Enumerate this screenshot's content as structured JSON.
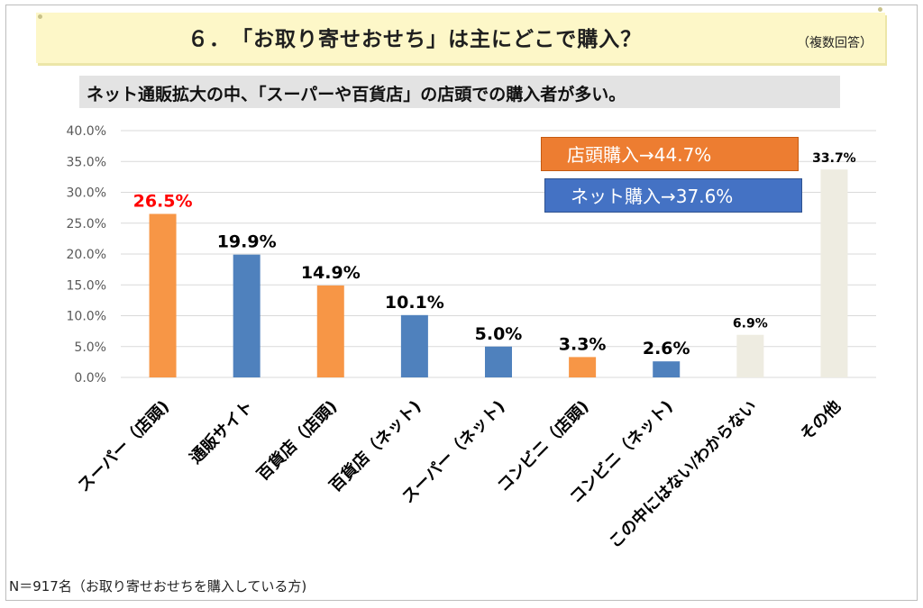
{
  "header": {
    "title": "６．　「お取り寄せおせち」は主にどこで購入？",
    "note": "（複数回答）",
    "subtitle": "ネット通販拡大の中、「スーパーや百貨店」の店頭での購入者が多い。"
  },
  "legend": {
    "store_total": "店頭購入→44.7%",
    "net_total": "ネット購入→37.6%"
  },
  "footer": "N＝917名（お取り寄せおせちを購入している方)",
  "colors": {
    "store": "#f79646",
    "net": "#4f81bd",
    "other": "#eeece1",
    "highlight_label": "#ff0000",
    "label": "#000000"
  },
  "chart_data": {
    "type": "bar",
    "categories": [
      "スーパー（店頭)",
      "通販サイト",
      "百貨店（店頭)",
      "百貨店（ネット)",
      "スーパー（ネット)",
      "コンビニ（店頭)",
      "コンビニ（ネット)",
      "この中にはない/わからない",
      "その他"
    ],
    "values": [
      26.5,
      19.9,
      14.9,
      10.1,
      5.0,
      3.3,
      2.6,
      6.9,
      33.7
    ],
    "value_labels": [
      "26.5%",
      "19.9%",
      "14.9%",
      "10.1%",
      "5.0%",
      "3.3%",
      "2.6%",
      "6.9%",
      "33.7%"
    ],
    "bar_groups": [
      "store",
      "net",
      "store",
      "net",
      "net",
      "store",
      "net",
      "other",
      "other"
    ],
    "highlight_index": 0,
    "yticks": [
      "0.0%",
      "5.0%",
      "10.0%",
      "15.0%",
      "20.0%",
      "25.0%",
      "30.0%",
      "35.0%",
      "40.0%"
    ],
    "ylim": [
      0,
      40
    ],
    "grid": true,
    "legend_position": "top-right"
  }
}
